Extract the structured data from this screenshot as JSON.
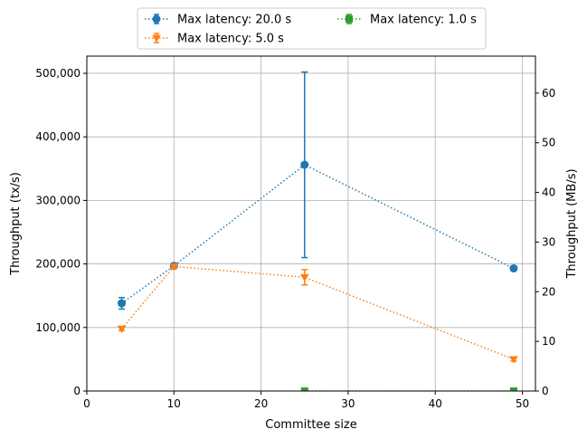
{
  "chart_data": {
    "type": "line",
    "xlabel": "Committee size",
    "ylabel": "Throughput (tx/s)",
    "y2label": "Throughput (MB/s)",
    "xlim": [
      0,
      51.5
    ],
    "ylim": [
      0,
      527000
    ],
    "y2lim": [
      0,
      67.45
    ],
    "xticks": [
      0,
      10,
      20,
      30,
      40,
      50
    ],
    "yticks": [
      0,
      100000,
      200000,
      300000,
      400000,
      500000
    ],
    "yticklabels": [
      "0",
      "100,000",
      "200,000",
      "300,000",
      "400,000",
      "500,000"
    ],
    "y2ticks": [
      0,
      10,
      20,
      30,
      40,
      50,
      60
    ],
    "grid": true,
    "legend_position": "top-center, above plot, 2 columns",
    "series": [
      {
        "name": "Max latency: 20.0 s",
        "color": "#1f77b4",
        "marker": "circle",
        "linestyle": "dotted",
        "x": [
          4,
          10,
          25,
          49
        ],
        "y": [
          138000,
          197000,
          356000,
          193000
        ],
        "yerr": [
          9000,
          4000,
          146000,
          4000
        ]
      },
      {
        "name": "Max latency: 5.0 s",
        "color": "#ff7f0e",
        "marker": "triangle-down",
        "linestyle": "dotted",
        "x": [
          4,
          10,
          25,
          49
        ],
        "y": [
          98000,
          196000,
          179000,
          50000
        ],
        "yerr": [
          3000,
          3000,
          12000,
          3000
        ]
      },
      {
        "name": "Max latency: 1.0 s",
        "color": "#2ca02c",
        "marker": "square",
        "linestyle": "dotted",
        "x": [
          25,
          49
        ],
        "y": [
          0,
          0
        ],
        "yerr": [
          0,
          0
        ]
      }
    ]
  }
}
